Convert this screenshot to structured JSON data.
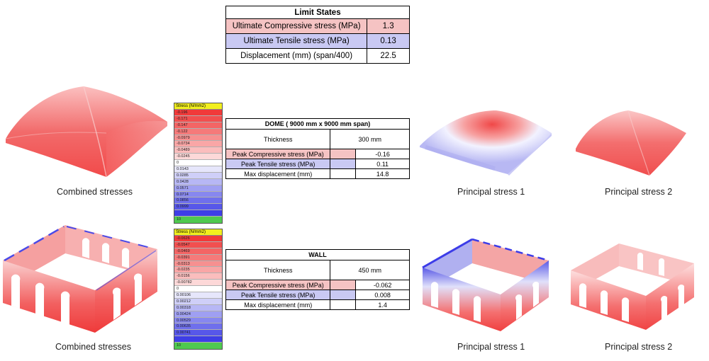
{
  "limit_states": {
    "title": "Limit States",
    "rows": [
      {
        "label": "Ultimate Compressive stress (MPa)",
        "value": "1.3"
      },
      {
        "label": "Ultimate Tensile stress (MPa)",
        "value": "0.13"
      },
      {
        "label": "Displacement (mm) (span/400)",
        "value": "22.5"
      }
    ]
  },
  "dome": {
    "title": "DOME ( 9000 mm x 9000 mm span)",
    "thickness_label": "Thickness",
    "thickness_value": "300 mm",
    "rows": [
      {
        "label": "Peak Compressive stress (MPa)",
        "value": "-0.16"
      },
      {
        "label": "Peak Tensile stress (MPa)",
        "value": "0.11"
      },
      {
        "label": "Max displacement (mm)",
        "value": "14.8"
      }
    ],
    "legend": {
      "title": "Stress (N/mm2)",
      "values": [
        "-0.196",
        "-0.171",
        "-0.147",
        "-0.122",
        "-0.0979",
        "-0.0734",
        "-0.0489",
        "-0.0245",
        "0",
        "0.0143",
        "0.0285",
        "0.0428",
        "0.0571",
        "0.0714",
        "0.0856",
        "0.0999",
        "",
        "10"
      ]
    }
  },
  "wall": {
    "title": "WALL",
    "thickness_label": "Thickness",
    "thickness_value": "450 mm",
    "rows": [
      {
        "label": "Peak Compressive stress (MPa)",
        "value": "-0.062"
      },
      {
        "label": "Peak Tensile stress (MPa)",
        "value": "0.008"
      },
      {
        "label": "Max displacement (mm)",
        "value": "1.4"
      }
    ],
    "legend": {
      "title": "Stress (N/mm2)",
      "values": [
        "-0.0626",
        "-0.0547",
        "-0.0469",
        "-0.0391",
        "-0.0313",
        "-0.0235",
        "-0.0156",
        "-0.00782",
        "0",
        "0.00106",
        "0.00212",
        "0.00318",
        "0.00424",
        "0.00529",
        "0.00635",
        "0.00741",
        "",
        "10"
      ]
    }
  },
  "captions": {
    "dome_combined": "Combined stresses",
    "dome_principal_1": "Principal stress 1",
    "dome_principal_2": "Principal stress 2",
    "wall_combined": "Combined stresses",
    "wall_principal_1": "Principal stress 1",
    "wall_principal_2": "Principal stress 2"
  },
  "colors": {
    "compression": "#f03c3c",
    "tension": "#3c3cf0",
    "legend_header": "#f2ef1e",
    "legend_last": "#4fc94f",
    "compressive_row": "#f5c3c3",
    "tensile_row": "#c9c9f3"
  }
}
